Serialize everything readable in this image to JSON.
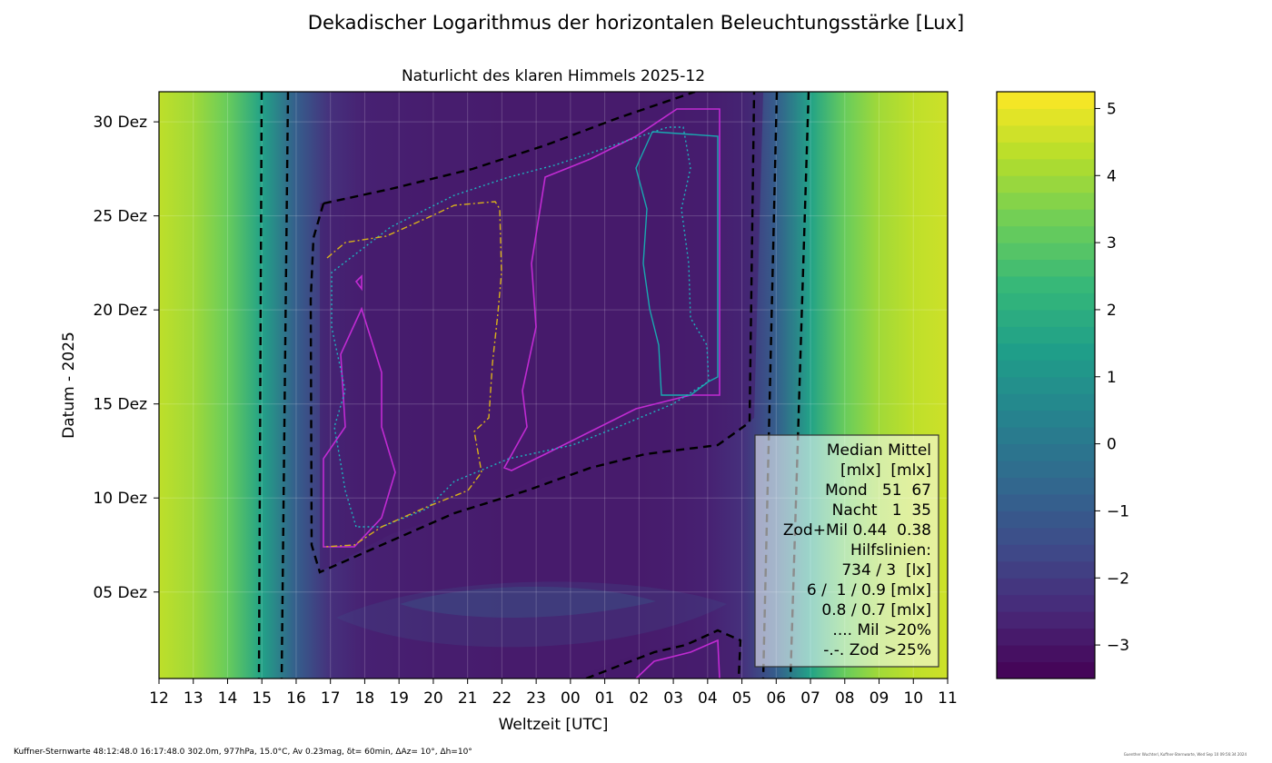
{
  "suptitle": "Dekadischer Logarithmus der horizontalen Beleuchtungsstärke [Lux]",
  "footer_left": "Kuffner-Sternwarte 48:12:48.0 16:17:48.0 302.0m,  977hPa, 15.0°C, Av 0.23mag, δt= 60min, ΔAz= 10°, Δh=10°",
  "footer_right": "Guenther Wuchterl, Kuffner-Sternwarte, Wed Sep 10 09:56:34 2024",
  "chart_data": {
    "type": "heatmap",
    "title": "Naturlicht des klaren Himmels 2025-12",
    "xlabel": "Weltzeit [UTC]",
    "ylabel": "Datum - 2025",
    "x_ticks": [
      "12",
      "13",
      "14",
      "15",
      "16",
      "17",
      "18",
      "19",
      "20",
      "21",
      "22",
      "23",
      "00",
      "01",
      "02",
      "03",
      "04",
      "05",
      "06",
      "07",
      "08",
      "09",
      "10",
      "11"
    ],
    "y_ticks": [
      "05 Dez",
      "10 Dez",
      "15 Dez",
      "20 Dez",
      "25 Dez",
      "30 Dez"
    ],
    "y_tick_days": [
      5,
      10,
      15,
      20,
      25,
      30
    ],
    "y_range": [
      0.4,
      31.6
    ],
    "x_range_hours_since_12UTC": [
      0,
      23
    ],
    "grid": true,
    "colormap": "viridis",
    "colorbar": {
      "range": [
        -3.5,
        5.25
      ],
      "ticks": [
        -3,
        -2,
        -1,
        0,
        1,
        2,
        3,
        4,
        5
      ],
      "tick_labels": [
        "−3",
        "−2",
        "−1",
        "0",
        "1",
        "2",
        "3",
        "4",
        "5"
      ]
    },
    "log10_lux_profile": {
      "utc_hour": [
        12,
        13,
        14,
        15,
        16,
        17,
        18,
        19,
        20,
        21,
        22,
        23,
        0,
        1,
        2,
        3,
        4,
        5,
        6,
        7,
        8,
        9,
        10,
        11
      ],
      "value": [
        4.4,
        4.0,
        3.2,
        1.5,
        -0.9,
        -2.3,
        -2.7,
        -2.75,
        -2.8,
        -2.8,
        -2.85,
        -2.85,
        -2.85,
        -2.85,
        -2.85,
        -2.8,
        -2.7,
        -2.3,
        -0.9,
        1.5,
        3.2,
        4.0,
        4.4,
        4.6
      ]
    },
    "annotations": {
      "legend_lines": [
        "Median Mittel",
        "[mlx]  [mlx]",
        "Mond   51  67",
        "Nacht   1  35",
        "Zod+Mil 0.44  0.38",
        "Hilfslinien:",
        "734 / 3  [lx]",
        "6 /  1 / 0.9 [mlx]",
        "0.8 / 0.7 [mlx]",
        ".... Mil >20%",
        "-.-. Zod >25%"
      ],
      "legend_position": "bottom-right"
    },
    "series": [
      {
        "name": "Mil >20%",
        "style": "dotted",
        "color": "#1fa5b5"
      },
      {
        "name": "Zod >25%",
        "style": "dash-dot",
        "color": "#d9b21a"
      }
    ],
    "contour_colors": {
      "hilfslinien_lx": "#000000",
      "mlx_6": "#b20bd1",
      "mlx_1": "#18a9b0",
      "mlx_0.9": "#c030d8"
    }
  }
}
